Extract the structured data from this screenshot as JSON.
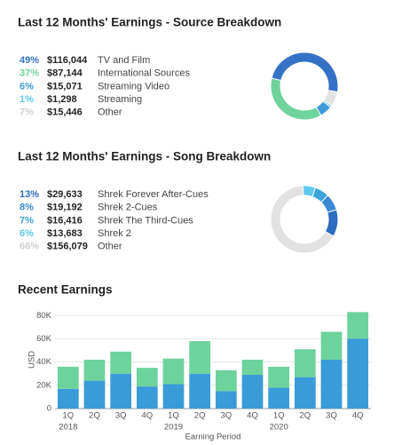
{
  "chart_data": [
    {
      "type": "pie",
      "title": "Last 12 Months' Earnings - Source Breakdown",
      "categories": [
        "TV and Film",
        "International Sources",
        "Streaming Video",
        "Streaming",
        "Other"
      ],
      "values": [
        49,
        37,
        6,
        1,
        7
      ],
      "value_labels": [
        "49%",
        "37%",
        "6%",
        "1%",
        "7%"
      ],
      "amounts": [
        "$116,044",
        "$87,144",
        "$15,071",
        "$1,298",
        "$15,446"
      ],
      "colors": [
        "#3572c6",
        "#6fd39b",
        "#3f9ad8",
        "#5cc6ea",
        "#e2e2e2"
      ]
    },
    {
      "type": "pie",
      "title": "Last 12 Months' Earnings - Song Breakdown",
      "categories": [
        "Shrek Forever After-Cues",
        "Shrek 2-Cues",
        "Shrek The Third-Cues",
        "Shrek 2",
        "Other"
      ],
      "values": [
        13,
        8,
        7,
        6,
        66
      ],
      "value_labels": [
        "13%",
        "8%",
        "7%",
        "6%",
        "66%"
      ],
      "amounts": [
        "$29,633",
        "$19,192",
        "$16,416",
        "$13,683",
        "$156,079"
      ],
      "colors": [
        "#2e6cc0",
        "#3a89d5",
        "#3ea4dc",
        "#5ec9ef",
        "#e2e2e2"
      ]
    },
    {
      "type": "stacked-bar",
      "title": "Recent Earnings",
      "categories": [
        "1Q",
        "2Q",
        "3Q",
        "4Q",
        "1Q",
        "2Q",
        "3Q",
        "4Q",
        "1Q",
        "2Q",
        "3Q",
        "4Q"
      ],
      "category_groups": [
        "2018",
        null,
        null,
        null,
        "2019",
        null,
        null,
        null,
        "2020",
        null,
        null,
        null
      ],
      "series": [
        {
          "color": "#3a9bd9",
          "values": [
            17000,
            24000,
            30000,
            19000,
            21000,
            30000,
            15000,
            29000,
            18000,
            27000,
            42000,
            60000
          ]
        },
        {
          "color": "#6dd39c",
          "values": [
            19000,
            18000,
            19000,
            16000,
            22000,
            28000,
            18000,
            13000,
            18000,
            24000,
            24000,
            23000
          ]
        }
      ],
      "ylabel": "USD",
      "xlabel": "Earning Period",
      "ylim": [
        0,
        84000
      ],
      "yticks": [
        0,
        {
          "value": 20000,
          "label": "20K"
        },
        {
          "value": 40000,
          "label": "40K"
        },
        {
          "value": 60000,
          "label": "60K"
        },
        {
          "value": 80000,
          "label": "80K"
        }
      ],
      "grid": true
    }
  ]
}
